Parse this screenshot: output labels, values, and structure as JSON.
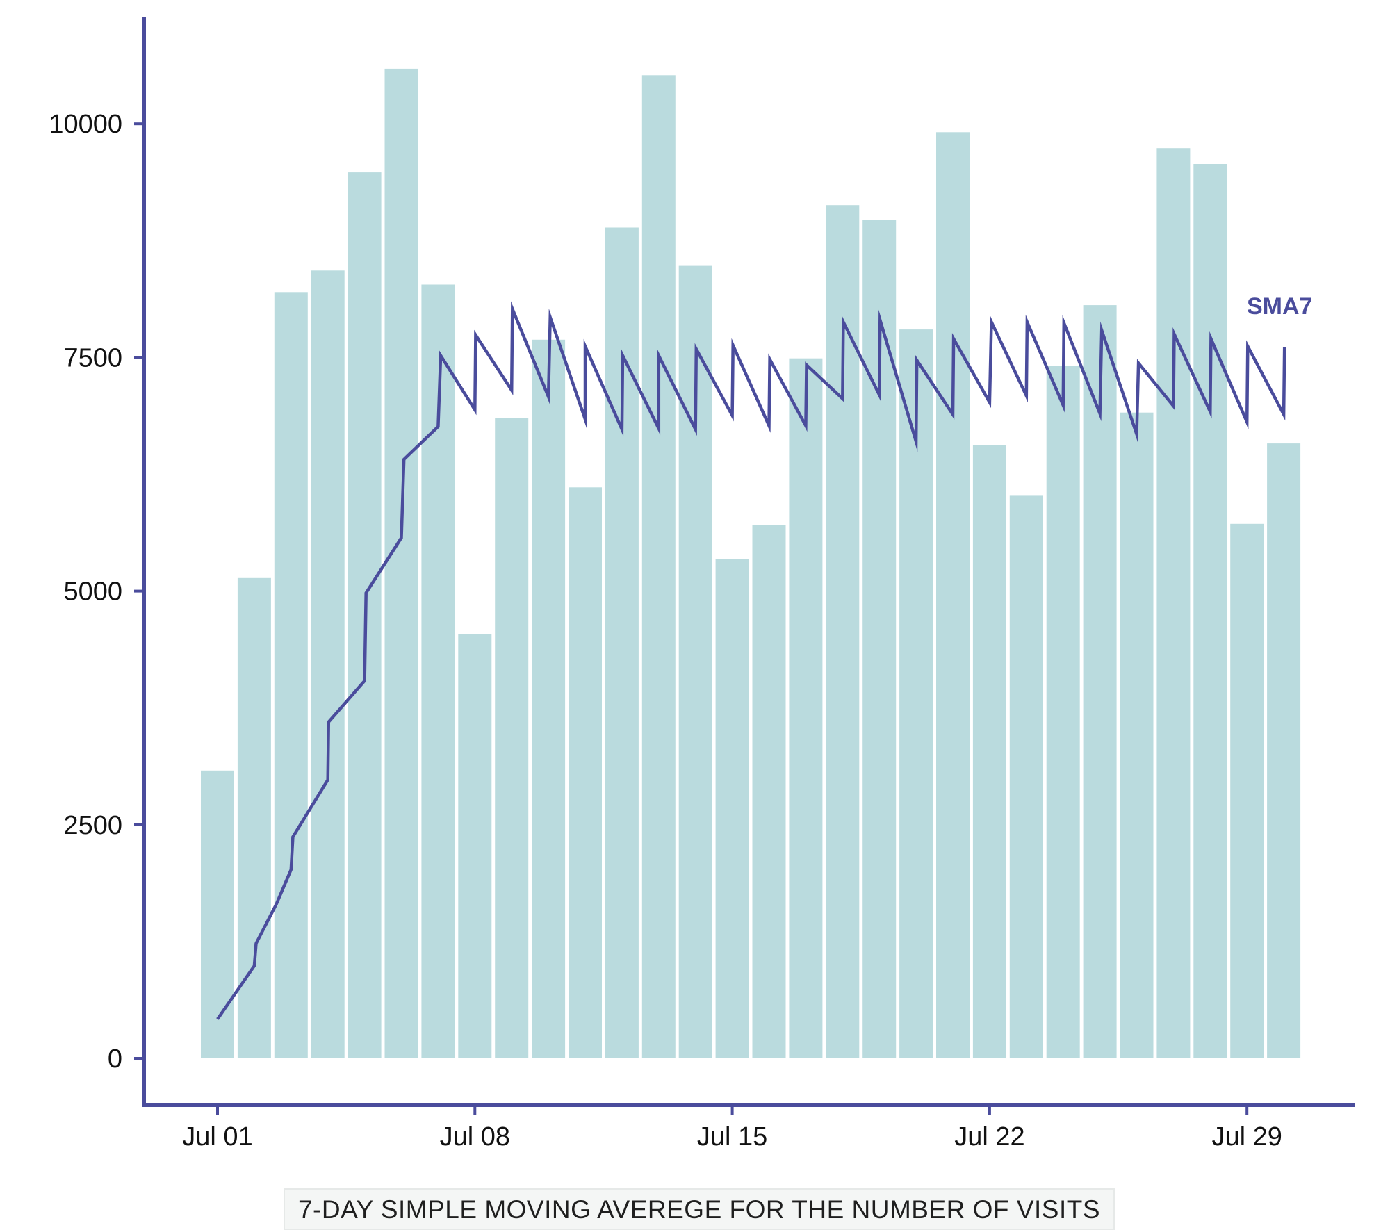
{
  "chart_data": {
    "type": "bar",
    "title": "",
    "caption": "7-DAY SIMPLE MOVING AVEREGE FOR THE NUMBER OF VISITS",
    "xlabel": "",
    "ylabel": "",
    "ylim": [
      -500,
      11200
    ],
    "y_ticks": [
      0,
      2500,
      5000,
      7500,
      10000
    ],
    "x_ticks": [
      {
        "label": "Jul 01",
        "index": 0
      },
      {
        "label": "Jul 08",
        "index": 7
      },
      {
        "label": "Jul 15",
        "index": 14
      },
      {
        "label": "Jul 22",
        "index": 21
      },
      {
        "label": "Jul 29",
        "index": 28
      }
    ],
    "categories": [
      "Jul 01",
      "Jul 02",
      "Jul 03",
      "Jul 04",
      "Jul 05",
      "Jul 06",
      "Jul 07",
      "Jul 08",
      "Jul 09",
      "Jul 10",
      "Jul 11",
      "Jul 12",
      "Jul 13",
      "Jul 14",
      "Jul 15",
      "Jul 16",
      "Jul 17",
      "Jul 18",
      "Jul 19",
      "Jul 20",
      "Jul 21",
      "Jul 22",
      "Jul 23",
      "Jul 24",
      "Jul 25",
      "Jul 26",
      "Jul 27",
      "Jul 28",
      "Jul 29",
      "Jul 30"
    ],
    "values": [
      3080,
      5140,
      8200,
      8430,
      9480,
      10590,
      8280,
      4540,
      6850,
      7690,
      6110,
      8890,
      10520,
      8480,
      5340,
      5710,
      7490,
      9130,
      8970,
      7800,
      9910,
      6560,
      6020,
      7410,
      8060,
      6910,
      9740,
      9570,
      5720,
      6580
    ],
    "sma_series": {
      "name": "SMA7",
      "points": [
        [
          0.0,
          420
        ],
        [
          1.0,
          990
        ],
        [
          1.05,
          1230
        ],
        [
          1.6,
          1650
        ],
        [
          2.0,
          2020
        ],
        [
          2.05,
          2370
        ],
        [
          3.0,
          2980
        ],
        [
          3.02,
          3600
        ],
        [
          4.0,
          4040
        ],
        [
          4.04,
          4980
        ],
        [
          5.0,
          5570
        ],
        [
          5.07,
          6410
        ],
        [
          6.0,
          6760
        ],
        [
          6.07,
          7520
        ],
        [
          7.0,
          6940
        ],
        [
          7.02,
          7740
        ],
        [
          8.0,
          7150
        ],
        [
          8.02,
          8020
        ],
        [
          9.0,
          7080
        ],
        [
          9.05,
          7930
        ],
        [
          10.0,
          6840
        ],
        [
          10.0,
          7620
        ],
        [
          11.0,
          6730
        ],
        [
          11.02,
          7520
        ],
        [
          12.0,
          6740
        ],
        [
          12.0,
          7520
        ],
        [
          13.0,
          6730
        ],
        [
          13.02,
          7590
        ],
        [
          14.0,
          6880
        ],
        [
          14.02,
          7630
        ],
        [
          15.0,
          6770
        ],
        [
          15.02,
          7480
        ],
        [
          16.0,
          6770
        ],
        [
          16.02,
          7420
        ],
        [
          17.0,
          7060
        ],
        [
          17.02,
          7880
        ],
        [
          18.0,
          7100
        ],
        [
          18.02,
          7900
        ],
        [
          19.0,
          6600
        ],
        [
          19.02,
          7470
        ],
        [
          20.0,
          6890
        ],
        [
          20.02,
          7700
        ],
        [
          21.0,
          7020
        ],
        [
          21.05,
          7880
        ],
        [
          22.0,
          7090
        ],
        [
          22.02,
          7880
        ],
        [
          23.0,
          6990
        ],
        [
          23.02,
          7870
        ],
        [
          24.0,
          6900
        ],
        [
          24.05,
          7790
        ],
        [
          25.0,
          6680
        ],
        [
          25.05,
          7440
        ],
        [
          26.0,
          6980
        ],
        [
          26.02,
          7750
        ],
        [
          27.0,
          6920
        ],
        [
          27.02,
          7700
        ],
        [
          28.0,
          6810
        ],
        [
          28.02,
          7620
        ],
        [
          29.0,
          6890
        ],
        [
          29.02,
          7610
        ]
      ]
    },
    "colors": {
      "bar": "#badbde",
      "line": "#4a4c9c",
      "axis": "#4a4c9c",
      "tick_text": "#111111"
    },
    "grid": false,
    "legend": "none"
  }
}
